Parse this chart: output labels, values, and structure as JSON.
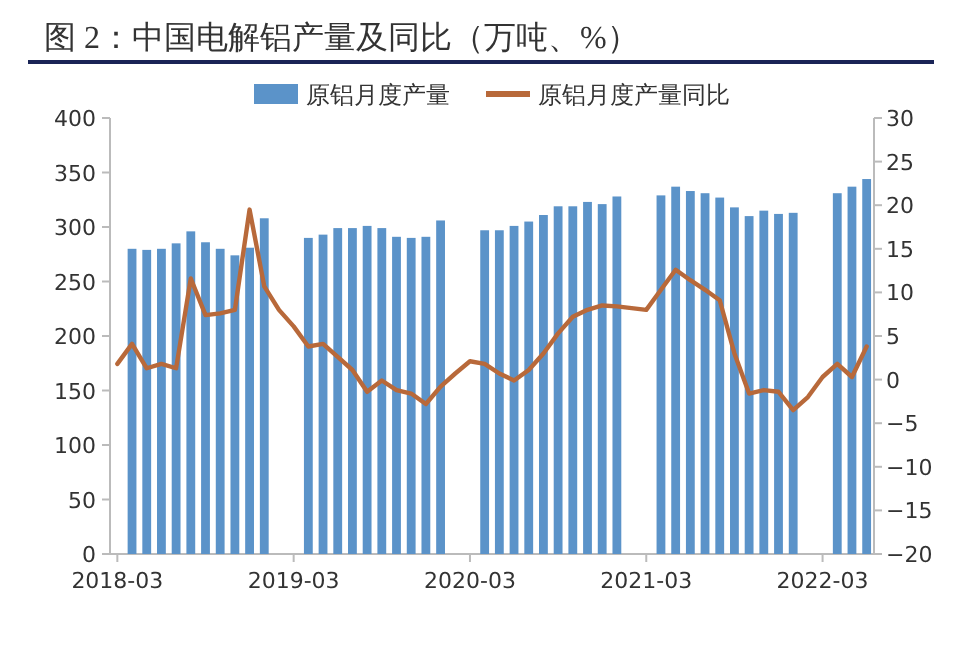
{
  "chart_data": {
    "type": "bar",
    "title": "图 2：中国电解铝产量及同比（万吨、%）",
    "categories": [
      "2018-03",
      null,
      null,
      null,
      null,
      null,
      null,
      null,
      null,
      null,
      null,
      null,
      "2019-03",
      null,
      null,
      null,
      null,
      null,
      null,
      null,
      null,
      null,
      null,
      null,
      "2020-03",
      null,
      null,
      null,
      null,
      null,
      null,
      null,
      null,
      null,
      null,
      null,
      "2021-03",
      null,
      null,
      null,
      null,
      null,
      null,
      null,
      null,
      null,
      null,
      null,
      "2022-03",
      null,
      null,
      null
    ],
    "series": [
      {
        "name": "原铝月度产量",
        "color": "#5b93c9",
        "values": [
          null,
          280,
          279,
          280,
          285,
          296,
          286,
          280,
          274,
          281,
          308,
          null,
          null,
          290,
          293,
          299,
          299,
          301,
          299,
          291,
          290,
          291,
          306,
          null,
          null,
          297,
          297,
          301,
          305,
          311,
          319,
          319,
          323,
          321,
          328,
          null,
          null,
          329,
          337,
          333,
          331,
          327,
          318,
          310,
          315,
          312,
          313,
          null,
          null,
          331,
          337,
          344
        ]
      },
      {
        "name": "原铝月度产量同比",
        "type": "line",
        "axis": "y2",
        "color": "#b8693a",
        "values": [
          1.8,
          4.1,
          1.3,
          1.8,
          1.3,
          11.6,
          7.4,
          7.6,
          8.0,
          19.5,
          10.7,
          8.0,
          6.1,
          3.8,
          4.1,
          2.6,
          1.1,
          -1.4,
          -0.1,
          -1.2,
          -1.6,
          -2.8,
          -0.8,
          0.7,
          2.1,
          1.8,
          0.7,
          -0.1,
          1.1,
          3.0,
          5.3,
          7.2,
          8.0,
          8.5,
          8.4,
          8.2,
          8.0,
          10.3,
          12.6,
          11.4,
          10.3,
          9.1,
          3.0,
          -1.6,
          -1.2,
          -1.4,
          -3.5,
          -2.0,
          0.3,
          1.8,
          0.3,
          3.8
        ]
      }
    ],
    "ylim": [
      0,
      400
    ],
    "yticks": [
      0,
      50,
      100,
      150,
      200,
      250,
      300,
      350,
      400
    ],
    "y2lim": [
      -20,
      30
    ],
    "y2ticks": [
      -20,
      -15,
      -10,
      -5,
      0,
      5,
      10,
      15,
      20,
      25,
      30
    ],
    "legend": "top",
    "grid": false
  }
}
